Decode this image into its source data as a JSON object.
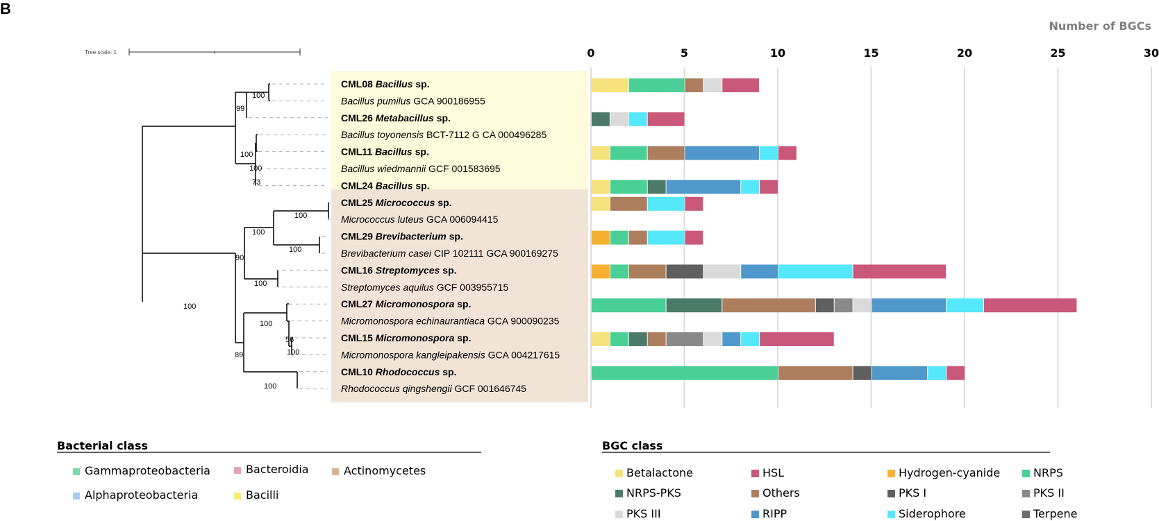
{
  "panel_label": "B",
  "tree": {
    "scale_label": "Tree scale: 1",
    "bootstrap": [
      "100",
      "99",
      "100",
      "100",
      "73",
      "100",
      "100",
      "100",
      "90",
      "100",
      "100",
      "100",
      "56",
      "100",
      "89",
      "100"
    ]
  },
  "taxa": [
    {
      "name": "CML08",
      "genus": "Bacillus",
      "suffix": "sp.",
      "isolate": true
    },
    {
      "name": "",
      "genus": "Bacillus pumilus",
      "suffix": "GCA 900186955",
      "isolate": false
    },
    {
      "name": "CML26",
      "genus": "Metabacillus",
      "suffix": "sp.",
      "isolate": true
    },
    {
      "name": "",
      "genus": "Bacillus toyonensis",
      "suffix": "BCT-7112 G CA 000496285",
      "isolate": false
    },
    {
      "name": "CML11",
      "genus": "Bacillus",
      "suffix": "sp.",
      "isolate": true
    },
    {
      "name": "",
      "genus": "Bacillus wiedmannii",
      "suffix": "GCF 001583695",
      "isolate": false
    },
    {
      "name": "CML24",
      "genus": "Bacillus",
      "suffix": "sp.",
      "isolate": true
    },
    {
      "name": "CML25",
      "genus": "Micrococcus",
      "suffix": "sp.",
      "isolate": true
    },
    {
      "name": "",
      "genus": "Micrococcus luteus",
      "suffix": "GCA 006094415",
      "isolate": false
    },
    {
      "name": "CML29",
      "genus": "Brevibacterium",
      "suffix": "sp.",
      "isolate": true
    },
    {
      "name": "",
      "genus": "Brevibacterium casei",
      "suffix": "CIP 102111 GCA 900169275",
      "isolate": false
    },
    {
      "name": "CML16",
      "genus": "Streptomyces",
      "suffix": "sp.",
      "isolate": true
    },
    {
      "name": "",
      "genus": "Streptomyces aquilus",
      "suffix": "GCF 003955715",
      "isolate": false
    },
    {
      "name": "CML27",
      "genus": "Micromonospora",
      "suffix": "sp.",
      "isolate": true
    },
    {
      "name": "",
      "genus": "Micromonospora echinaurantiaca",
      "suffix": "GCA 900090235",
      "isolate": false
    },
    {
      "name": "CML15",
      "genus": "Micromonospora",
      "suffix": "sp.",
      "isolate": true
    },
    {
      "name": "",
      "genus": "Micromonospora kangleipakensis",
      "suffix": "GCA 004217615",
      "isolate": false
    },
    {
      "name": "CML10",
      "genus": "Rhodococcus",
      "suffix": "sp.",
      "isolate": true
    },
    {
      "name": "",
      "genus": "Rhodococcus qingshengii",
      "suffix": "GCF 001646745",
      "isolate": false
    }
  ],
  "bacterial_class_legend": {
    "title": "Bacterial class",
    "items": [
      {
        "label": "Gammaproteobacteria",
        "color": "#7fd9ad"
      },
      {
        "label": "Bacteroidia",
        "color": "#e2a4b8"
      },
      {
        "label": "Actinomycetes",
        "color": "#d9b48a"
      },
      {
        "label": "Alphaproteobacteria",
        "color": "#a9c9ec"
      },
      {
        "label": "Bacilli",
        "color": "#f7ec70"
      }
    ],
    "shading": {
      "Bacilli": "#fdfbdc",
      "Actinomycetes": "#f1e3d6"
    }
  },
  "chart_data": {
    "type": "bar",
    "orientation": "horizontal",
    "stacked": true,
    "title": "Number of BGCs",
    "xlim": [
      0,
      30
    ],
    "xticks": [
      0,
      5,
      10,
      15,
      20,
      25,
      30
    ],
    "grid": true,
    "legend_title": "BGC class",
    "bgc_classes": [
      {
        "name": "Betalactone",
        "color": "#f5e27a"
      },
      {
        "name": "HSL",
        "color": "#c9587a"
      },
      {
        "name": "Hydrogen-cyanide",
        "color": "#f5b12f"
      },
      {
        "name": "NRPS",
        "color": "#4acf96"
      },
      {
        "name": "NRPS-PKS",
        "color": "#4b7a68"
      },
      {
        "name": "Others",
        "color": "#ad7e5e"
      },
      {
        "name": "PKS I",
        "color": "#5f5f5f"
      },
      {
        "name": "PKS II",
        "color": "#898989"
      },
      {
        "name": "PKS III",
        "color": "#dadada"
      },
      {
        "name": "RIPP",
        "color": "#4f98cc"
      },
      {
        "name": "Siderophore",
        "color": "#55e8fa"
      },
      {
        "name": "Terpene",
        "color": "#6b6b6b"
      }
    ],
    "rows": [
      {
        "taxon": "CML08",
        "row": 0,
        "segments": [
          [
            "Betalactone",
            2
          ],
          [
            "NRPS",
            3
          ],
          [
            "Others",
            1
          ],
          [
            "PKS III",
            1
          ],
          [
            "HSL",
            2
          ]
        ]
      },
      {
        "taxon": "CML26",
        "row": 2,
        "segments": [
          [
            "NRPS-PKS",
            1
          ],
          [
            "PKS III",
            1
          ],
          [
            "Siderophore",
            1
          ],
          [
            "HSL",
            2
          ]
        ]
      },
      {
        "taxon": "CML11",
        "row": 4,
        "segments": [
          [
            "Betalactone",
            1
          ],
          [
            "NRPS",
            2
          ],
          [
            "Others",
            2
          ],
          [
            "RIPP",
            4
          ],
          [
            "Siderophore",
            1
          ],
          [
            "HSL",
            1
          ]
        ]
      },
      {
        "taxon": "CML24",
        "row": 6,
        "segments": [
          [
            "Betalactone",
            1
          ],
          [
            "NRPS",
            2
          ],
          [
            "NRPS-PKS",
            1
          ],
          [
            "RIPP",
            4
          ],
          [
            "Siderophore",
            1
          ],
          [
            "HSL",
            1
          ]
        ]
      },
      {
        "taxon": "CML25",
        "row": 7,
        "segments": [
          [
            "Betalactone",
            1
          ],
          [
            "Others",
            2
          ],
          [
            "Siderophore",
            2
          ],
          [
            "HSL",
            1
          ]
        ]
      },
      {
        "taxon": "CML29",
        "row": 9,
        "segments": [
          [
            "Hydrogen-cyanide",
            1
          ],
          [
            "NRPS",
            1
          ],
          [
            "Others",
            1
          ],
          [
            "Siderophore",
            2
          ],
          [
            "HSL",
            1
          ]
        ]
      },
      {
        "taxon": "CML16",
        "row": 11,
        "segments": [
          [
            "Hydrogen-cyanide",
            1
          ],
          [
            "NRPS",
            1
          ],
          [
            "Others",
            2
          ],
          [
            "PKS I",
            2
          ],
          [
            "PKS III",
            2
          ],
          [
            "RIPP",
            2
          ],
          [
            "Siderophore",
            4
          ],
          [
            "HSL",
            5
          ]
        ]
      },
      {
        "taxon": "CML27",
        "row": 13,
        "segments": [
          [
            "NRPS",
            4
          ],
          [
            "NRPS-PKS",
            3
          ],
          [
            "Others",
            5
          ],
          [
            "PKS I",
            1
          ],
          [
            "PKS II",
            1
          ],
          [
            "PKS III",
            1
          ],
          [
            "RIPP",
            4
          ],
          [
            "Siderophore",
            2
          ],
          [
            "HSL",
            5
          ]
        ]
      },
      {
        "taxon": "CML15",
        "row": 15,
        "segments": [
          [
            "Betalactone",
            1
          ],
          [
            "NRPS",
            1
          ],
          [
            "NRPS-PKS",
            1
          ],
          [
            "Others",
            1
          ],
          [
            "PKS II",
            2
          ],
          [
            "PKS III",
            1
          ],
          [
            "RIPP",
            1
          ],
          [
            "Siderophore",
            1
          ],
          [
            "HSL",
            4
          ]
        ]
      },
      {
        "taxon": "CML10",
        "row": 17,
        "segments": [
          [
            "NRPS",
            10
          ],
          [
            "Others",
            4
          ],
          [
            "PKS I",
            1
          ],
          [
            "RIPP",
            3
          ],
          [
            "Siderophore",
            1
          ],
          [
            "HSL",
            1
          ]
        ]
      }
    ]
  }
}
